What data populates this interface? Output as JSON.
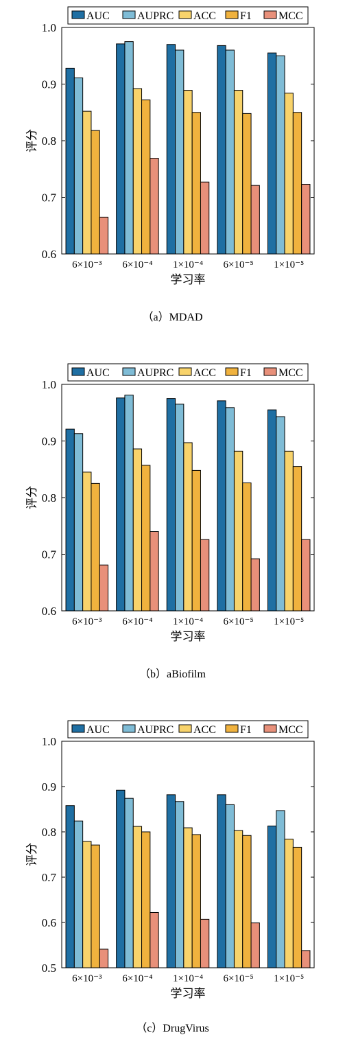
{
  "colors": {
    "AUC": "#1f6fa3",
    "AUPRC": "#7fbcd6",
    "ACC": "#f8d36b",
    "F1": "#f0b23e",
    "MCC": "#e8907a"
  },
  "chart_data": [
    {
      "type": "bar",
      "caption": "（a）MDAD",
      "categories": [
        "6×10⁻³",
        "6×10⁻⁴",
        "1×10⁻⁴",
        "6×10⁻⁵",
        "1×10⁻⁵"
      ],
      "xlabel": "学习率",
      "ylabel": "评分",
      "ylim": [
        0.6,
        1.0
      ],
      "yticks": [
        "0.6",
        "0.7",
        "0.8",
        "0.9",
        "1.0"
      ],
      "legend_position": "top",
      "series": [
        {
          "name": "AUC",
          "values": [
            0.928,
            0.971,
            0.97,
            0.968,
            0.955
          ]
        },
        {
          "name": "AUPRC",
          "values": [
            0.911,
            0.975,
            0.96,
            0.96,
            0.95
          ]
        },
        {
          "name": "ACC",
          "values": [
            0.852,
            0.892,
            0.889,
            0.889,
            0.884
          ]
        },
        {
          "name": "F1",
          "values": [
            0.818,
            0.872,
            0.85,
            0.848,
            0.85
          ]
        },
        {
          "name": "MCC",
          "values": [
            0.665,
            0.769,
            0.727,
            0.721,
            0.723
          ]
        }
      ]
    },
    {
      "type": "bar",
      "caption": "（b）aBiofilm",
      "categories": [
        "6×10⁻³",
        "6×10⁻⁴",
        "1×10⁻⁴",
        "6×10⁻⁵",
        "1×10⁻⁵"
      ],
      "xlabel": "学习率",
      "ylabel": "评分",
      "ylim": [
        0.6,
        1.0
      ],
      "yticks": [
        "0.6",
        "0.7",
        "0.8",
        "0.9",
        "1.0"
      ],
      "legend_position": "top",
      "series": [
        {
          "name": "AUC",
          "values": [
            0.921,
            0.976,
            0.975,
            0.971,
            0.955
          ]
        },
        {
          "name": "AUPRC",
          "values": [
            0.913,
            0.981,
            0.965,
            0.959,
            0.943
          ]
        },
        {
          "name": "ACC",
          "values": [
            0.845,
            0.886,
            0.897,
            0.882,
            0.882
          ]
        },
        {
          "name": "F1",
          "values": [
            0.825,
            0.857,
            0.848,
            0.826,
            0.855
          ]
        },
        {
          "name": "MCC",
          "values": [
            0.681,
            0.74,
            0.726,
            0.692,
            0.726
          ]
        }
      ]
    },
    {
      "type": "bar",
      "caption": "（c）DrugVirus",
      "categories": [
        "6×10⁻³",
        "6×10⁻⁴",
        "1×10⁻⁴",
        "6×10⁻⁵",
        "1×10⁻⁵"
      ],
      "xlabel": "学习率",
      "ylabel": "评分",
      "ylim": [
        0.5,
        1.0
      ],
      "yticks": [
        "0.5",
        "0.6",
        "0.7",
        "0.8",
        "0.9",
        "1.0"
      ],
      "legend_position": "top",
      "series": [
        {
          "name": "AUC",
          "values": [
            0.858,
            0.892,
            0.882,
            0.882,
            0.813
          ]
        },
        {
          "name": "AUPRC",
          "values": [
            0.824,
            0.874,
            0.867,
            0.86,
            0.847
          ]
        },
        {
          "name": "ACC",
          "values": [
            0.779,
            0.812,
            0.809,
            0.803,
            0.784
          ]
        },
        {
          "name": "F1",
          "values": [
            0.771,
            0.8,
            0.794,
            0.792,
            0.766
          ]
        },
        {
          "name": "MCC",
          "values": [
            0.541,
            0.622,
            0.607,
            0.599,
            0.538
          ]
        }
      ]
    }
  ]
}
